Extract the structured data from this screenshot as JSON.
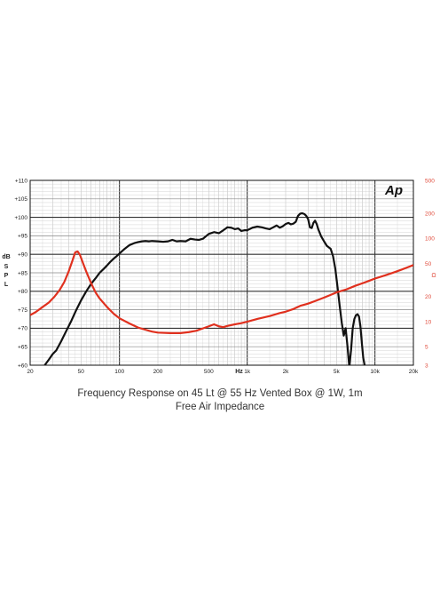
{
  "caption": {
    "line1": "Frequency Response on 45 Lt @ 55 Hz Vented Box @ 1W, 1m",
    "line2": "Free Air Impedance"
  },
  "logo_text": "Ap",
  "chart_data": {
    "type": "line",
    "xscale": "log",
    "xlim": [
      20,
      20000
    ],
    "xlabel": "Hz",
    "x_ticks": [
      20,
      50,
      100,
      200,
      500,
      1000,
      2000,
      5000,
      10000,
      20000
    ],
    "x_tick_labels": [
      "20",
      "50",
      "100",
      "200",
      "500",
      "1k",
      "2k",
      "5k",
      "10k",
      "20k"
    ],
    "grid": true,
    "left_axis": {
      "label_lines": [
        "dB",
        "SPL"
      ],
      "ylim": [
        60,
        110
      ],
      "ticks": [
        60,
        65,
        70,
        75,
        80,
        85,
        90,
        95,
        100,
        105,
        110
      ],
      "tick_labels": [
        "+60",
        "+65",
        "+70",
        "+75",
        "+80",
        "+85",
        "+90",
        "+95",
        "+100",
        "+105",
        "+110"
      ]
    },
    "right_axis": {
      "label": "Ω",
      "scale": "log",
      "ylim": [
        3,
        500
      ],
      "ticks": [
        3,
        5,
        10,
        20,
        50,
        100,
        200,
        500
      ],
      "tick_labels": [
        "3",
        "5",
        "10",
        "20",
        "50",
        "100",
        "200",
        "500"
      ]
    },
    "series": [
      {
        "axis": "left",
        "color": "#111111",
        "points": [
          [
            26,
            60
          ],
          [
            28,
            61.5
          ],
          [
            30,
            63
          ],
          [
            32,
            64
          ],
          [
            35,
            66.5
          ],
          [
            38,
            69
          ],
          [
            42,
            72
          ],
          [
            46,
            75
          ],
          [
            50,
            77.5
          ],
          [
            55,
            80
          ],
          [
            60,
            82
          ],
          [
            65,
            83.5
          ],
          [
            70,
            85
          ],
          [
            75,
            86
          ],
          [
            80,
            87
          ],
          [
            85,
            88
          ],
          [
            90,
            88.8
          ],
          [
            95,
            89.5
          ],
          [
            100,
            90.2
          ],
          [
            110,
            91.5
          ],
          [
            120,
            92.5
          ],
          [
            130,
            93
          ],
          [
            140,
            93.3
          ],
          [
            150,
            93.5
          ],
          [
            160,
            93.6
          ],
          [
            170,
            93.5
          ],
          [
            180,
            93.6
          ],
          [
            200,
            93.5
          ],
          [
            220,
            93.4
          ],
          [
            240,
            93.5
          ],
          [
            260,
            93.9
          ],
          [
            280,
            93.5
          ],
          [
            300,
            93.6
          ],
          [
            330,
            93.5
          ],
          [
            360,
            94.2
          ],
          [
            390,
            94
          ],
          [
            420,
            93.9
          ],
          [
            450,
            94.2
          ],
          [
            500,
            95.5
          ],
          [
            550,
            96
          ],
          [
            600,
            95.7
          ],
          [
            650,
            96.5
          ],
          [
            700,
            97.3
          ],
          [
            750,
            97.2
          ],
          [
            800,
            96.8
          ],
          [
            850,
            97
          ],
          [
            900,
            96.3
          ],
          [
            950,
            96.5
          ],
          [
            1000,
            96.5
          ],
          [
            1100,
            97.2
          ],
          [
            1200,
            97.5
          ],
          [
            1300,
            97.3
          ],
          [
            1400,
            97
          ],
          [
            1500,
            96.8
          ],
          [
            1600,
            97.3
          ],
          [
            1700,
            97.8
          ],
          [
            1800,
            97.2
          ],
          [
            1900,
            97.6
          ],
          [
            2000,
            98.2
          ],
          [
            2100,
            98.5
          ],
          [
            2200,
            98.1
          ],
          [
            2300,
            98.3
          ],
          [
            2400,
            98.8
          ],
          [
            2500,
            100.4
          ],
          [
            2600,
            101
          ],
          [
            2700,
            101.1
          ],
          [
            2800,
            100.9
          ],
          [
            2900,
            100.4
          ],
          [
            3000,
            99.5
          ],
          [
            3100,
            97.3
          ],
          [
            3200,
            97.1
          ],
          [
            3300,
            98.5
          ],
          [
            3400,
            99.1
          ],
          [
            3500,
            98.2
          ],
          [
            3600,
            96.8
          ],
          [
            3800,
            94.8
          ],
          [
            4000,
            93.5
          ],
          [
            4200,
            92.3
          ],
          [
            4500,
            91.5
          ],
          [
            4700,
            89.5
          ],
          [
            4900,
            86
          ],
          [
            5100,
            81
          ],
          [
            5300,
            76
          ],
          [
            5500,
            71.5
          ],
          [
            5700,
            68
          ],
          [
            5900,
            70
          ],
          [
            6100,
            65
          ],
          [
            6300,
            59.5
          ],
          [
            6500,
            64
          ],
          [
            6700,
            70
          ],
          [
            6900,
            72.5
          ],
          [
            7100,
            73.5
          ],
          [
            7300,
            73.8
          ],
          [
            7500,
            73.2
          ],
          [
            7700,
            70.5
          ],
          [
            7900,
            66
          ],
          [
            8100,
            62
          ],
          [
            8300,
            60
          ]
        ]
      },
      {
        "axis": "right",
        "color": "#e0301e",
        "points": [
          [
            20,
            12
          ],
          [
            22,
            13
          ],
          [
            25,
            15
          ],
          [
            28,
            17
          ],
          [
            31,
            20
          ],
          [
            34,
            24
          ],
          [
            37,
            30
          ],
          [
            40,
            40
          ],
          [
            43,
            55
          ],
          [
            45,
            68
          ],
          [
            47,
            70
          ],
          [
            49,
            64
          ],
          [
            52,
            50
          ],
          [
            55,
            40
          ],
          [
            60,
            29
          ],
          [
            65,
            22.5
          ],
          [
            70,
            19
          ],
          [
            80,
            15
          ],
          [
            90,
            12.5
          ],
          [
            100,
            11
          ],
          [
            120,
            9.5
          ],
          [
            140,
            8.5
          ],
          [
            160,
            8
          ],
          [
            180,
            7.6
          ],
          [
            200,
            7.4
          ],
          [
            250,
            7.3
          ],
          [
            300,
            7.3
          ],
          [
            350,
            7.5
          ],
          [
            400,
            7.8
          ],
          [
            450,
            8.3
          ],
          [
            500,
            8.8
          ],
          [
            550,
            9.3
          ],
          [
            600,
            8.8
          ],
          [
            650,
            8.6
          ],
          [
            700,
            8.9
          ],
          [
            800,
            9.3
          ],
          [
            900,
            9.6
          ],
          [
            1000,
            10
          ],
          [
            1200,
            10.8
          ],
          [
            1500,
            11.7
          ],
          [
            1800,
            12.7
          ],
          [
            2000,
            13.2
          ],
          [
            2300,
            14.2
          ],
          [
            2600,
            15.5
          ],
          [
            3000,
            16.5
          ],
          [
            3500,
            18
          ],
          [
            4000,
            19.5
          ],
          [
            4500,
            21
          ],
          [
            5000,
            22.5
          ],
          [
            6000,
            24.5
          ],
          [
            7000,
            27
          ],
          [
            8000,
            29
          ],
          [
            9000,
            31
          ],
          [
            10000,
            33
          ],
          [
            12000,
            36
          ],
          [
            14000,
            39
          ],
          [
            16000,
            42
          ],
          [
            18000,
            45
          ],
          [
            20000,
            48
          ]
        ]
      }
    ]
  }
}
